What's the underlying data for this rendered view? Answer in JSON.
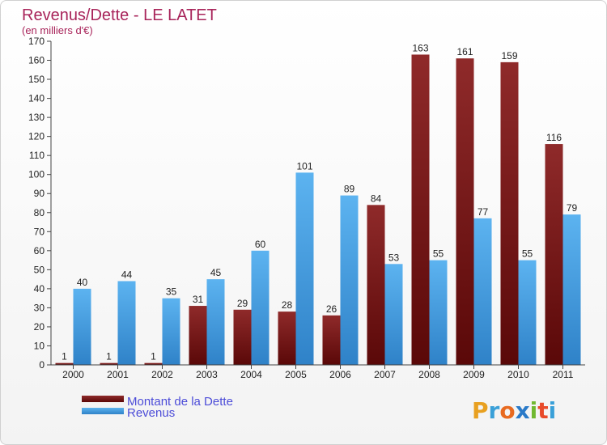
{
  "chart_data": {
    "type": "bar",
    "title": "Revenus/Dette - LE LATET",
    "subtitle": "(en milliers d'€)",
    "categories": [
      "2000",
      "2001",
      "2002",
      "2003",
      "2004",
      "2005",
      "2006",
      "2007",
      "2008",
      "2009",
      "2010",
      "2011"
    ],
    "series": [
      {
        "name": "Montant de la Dette",
        "color": "#7a1a1a",
        "values": [
          1,
          1,
          1,
          31,
          29,
          28,
          26,
          84,
          163,
          161,
          159,
          116
        ]
      },
      {
        "name": "Revenus",
        "color": "#4aa3e8",
        "values": [
          40,
          44,
          35,
          45,
          60,
          101,
          89,
          53,
          55,
          77,
          55,
          79
        ]
      }
    ],
    "ylim": [
      0,
      170
    ],
    "yticks": [
      0,
      10,
      20,
      30,
      40,
      50,
      60,
      70,
      80,
      90,
      100,
      110,
      120,
      130,
      140,
      150,
      160,
      170
    ],
    "grid": false,
    "legend_position": "bottom-left"
  },
  "logo": {
    "letters": [
      "P",
      "r",
      "o",
      "x",
      "i",
      "t",
      "i"
    ],
    "colors": [
      "#e8a020",
      "#3aa0d8",
      "#e86a20",
      "#2a7ac8",
      "#70b830",
      "#e84a2a",
      "#3aa0d8"
    ]
  }
}
